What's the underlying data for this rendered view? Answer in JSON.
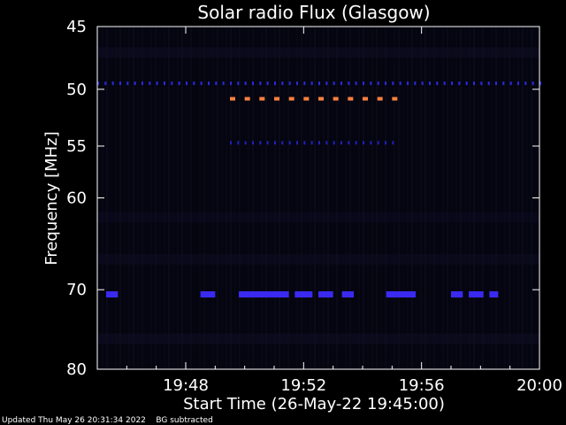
{
  "chart_data": {
    "type": "heatmap",
    "title": "Solar radio Flux (Glasgow)",
    "xlabel": "Start Time (26-May-22 19:45:00)",
    "ylabel": "Frequency [MHz]",
    "x_ticks": [
      "19:48",
      "19:52",
      "19:56",
      "20:00"
    ],
    "x_tick_minutes": [
      3,
      7,
      11,
      15
    ],
    "xlim_minutes": [
      0,
      15
    ],
    "y_ticks": [
      45,
      50,
      55,
      60,
      70,
      80
    ],
    "ylim": [
      45,
      80
    ],
    "y_scale": "log",
    "background_color": "#05050f",
    "features": [
      {
        "name": "dotted-line-50MHz",
        "freq": 49.5,
        "t_start": 0.0,
        "t_end": 15.0,
        "color": "#2a2ae0",
        "style": "dots"
      },
      {
        "name": "orange-burst-51MHz",
        "freq": 50.8,
        "t_start": 4.5,
        "t_end": 10.0,
        "color": "#ff8040",
        "style": "dashes"
      },
      {
        "name": "faint-line-55MHz",
        "freq": 54.7,
        "t_start": 4.5,
        "t_end": 10.0,
        "color": "#2020c0",
        "style": "dots"
      },
      {
        "name": "band-70-5MHz",
        "freq": 70.5,
        "segments": [
          [
            0.3,
            0.7
          ],
          [
            3.5,
            4.0
          ],
          [
            4.8,
            6.5
          ],
          [
            6.7,
            7.3
          ],
          [
            7.5,
            8.0
          ],
          [
            8.3,
            8.7
          ],
          [
            9.8,
            10.8
          ],
          [
            12.0,
            12.4
          ],
          [
            12.6,
            13.1
          ],
          [
            13.3,
            13.6
          ]
        ],
        "color": "#3a2af0"
      }
    ]
  },
  "footer": {
    "updated": "Updated Thu May 26 20:31:34 2022",
    "note": "BG subtracted"
  }
}
